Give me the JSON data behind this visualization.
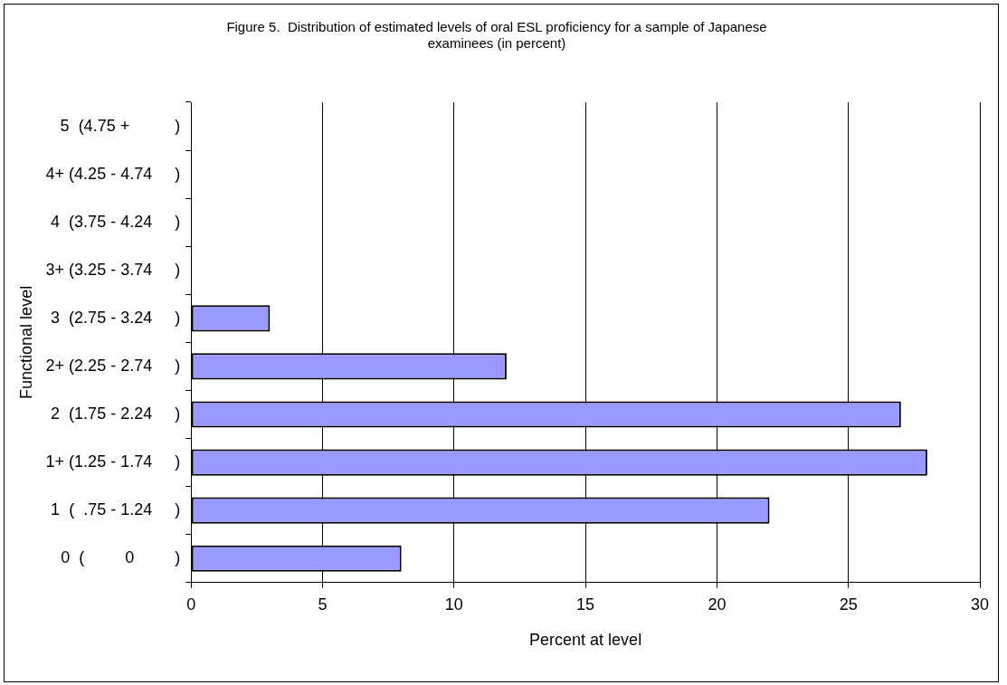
{
  "chart_data": {
    "type": "bar",
    "orientation": "horizontal",
    "title": "Figure 5.  Distribution of estimated levels of oral ESL proficiency for a sample of Japanese\nexaminees (in percent)",
    "xlabel": "Percent at level",
    "ylabel": "Functional level",
    "categories": [
      "5  (4.75 +          )",
      "4+ (4.25 - 4.74     )",
      "4  (3.75 - 4.24     )",
      "3+ (3.25 - 3.74     )",
      "3  (2.75 - 3.24     )",
      "2+ (2.25 - 2.74     )",
      "2  (1.75 - 2.24     )",
      "1+ (1.25 - 1.74     )",
      "1  (  .75 - 1.24     )",
      "0  (         0         )"
    ],
    "values": [
      0,
      0,
      0,
      0,
      3,
      12,
      27,
      28,
      22,
      8
    ],
    "color": "#9999ff",
    "xlim": [
      0,
      30
    ],
    "xticks": [
      0,
      5,
      10,
      15,
      20,
      25,
      30
    ],
    "grid": "x"
  }
}
